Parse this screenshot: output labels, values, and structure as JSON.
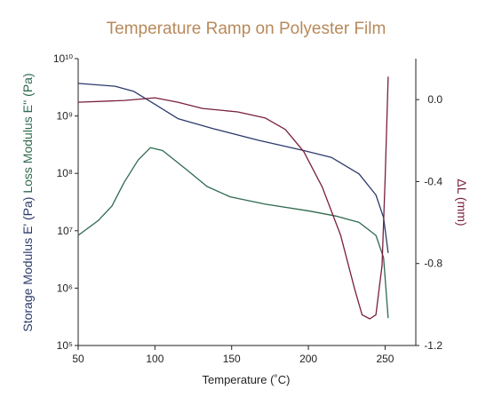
{
  "chart_data": {
    "type": "line",
    "title": "Temperature Ramp on Polyester Film",
    "xlabel": "Temperature (˚C)",
    "xlim": [
      50,
      270
    ],
    "xticks": [
      50,
      100,
      150,
      200,
      250
    ],
    "ylim": [
      100000,
      10000000000
    ],
    "ylog": true,
    "yticks": [
      {
        "value": 100000,
        "label": "10⁵"
      },
      {
        "value": 1000000,
        "label": "10⁶"
      },
      {
        "value": 10000000,
        "label": "10⁷"
      },
      {
        "value": 100000000,
        "label": "10⁸"
      },
      {
        "value": 1000000000,
        "label": "10⁹"
      },
      {
        "value": 10000000000,
        "label": "10¹⁰"
      }
    ],
    "y2lim": [
      -1.2,
      0.2
    ],
    "y2ticks": [
      {
        "value": 0.0,
        "label": "0.0"
      },
      -0.4,
      -0.8,
      -1.2
    ],
    "series": [
      {
        "name": "Storage Modulus E' (Pa)",
        "color": "#2b3a6b",
        "x": [
          50,
          74,
          86,
          100,
          115,
          138,
          167,
          197,
          215,
          233,
          244,
          249,
          252
        ],
        "values": [
          3700000000,
          3300000000,
          2700000000,
          1600000000,
          900000000,
          600000000,
          380000000,
          250000000,
          190000000,
          98000000,
          42000000,
          17000000,
          4100000
        ]
      },
      {
        "name": "Loss Modulus E'' (Pa)",
        "color": "#2e6a4f",
        "x": [
          50,
          63,
          72,
          80,
          89,
          97,
          105,
          120,
          134,
          149,
          172,
          201,
          218,
          233,
          244,
          249,
          252
        ],
        "values": [
          8300000,
          15000000,
          27000000,
          70000000,
          170000000,
          280000000,
          250000000,
          120000000,
          59000000,
          39000000,
          29000000,
          22000000,
          18000000,
          14000000,
          8300000,
          3400000,
          300000
        ]
      },
      {
        "name": "ΔL (mm)",
        "color": "#7a1f3d",
        "axis": "y2",
        "x": [
          50,
          80,
          100,
          115,
          131,
          154,
          172,
          185,
          197,
          209,
          221,
          230,
          235,
          240,
          244,
          248,
          250,
          252
        ],
        "values": [
          -0.013,
          -0.004,
          0.009,
          -0.013,
          -0.043,
          -0.06,
          -0.09,
          -0.146,
          -0.254,
          -0.426,
          -0.662,
          -0.92,
          -1.05,
          -1.07,
          -1.05,
          -0.81,
          -0.383,
          0.112
        ]
      }
    ]
  }
}
